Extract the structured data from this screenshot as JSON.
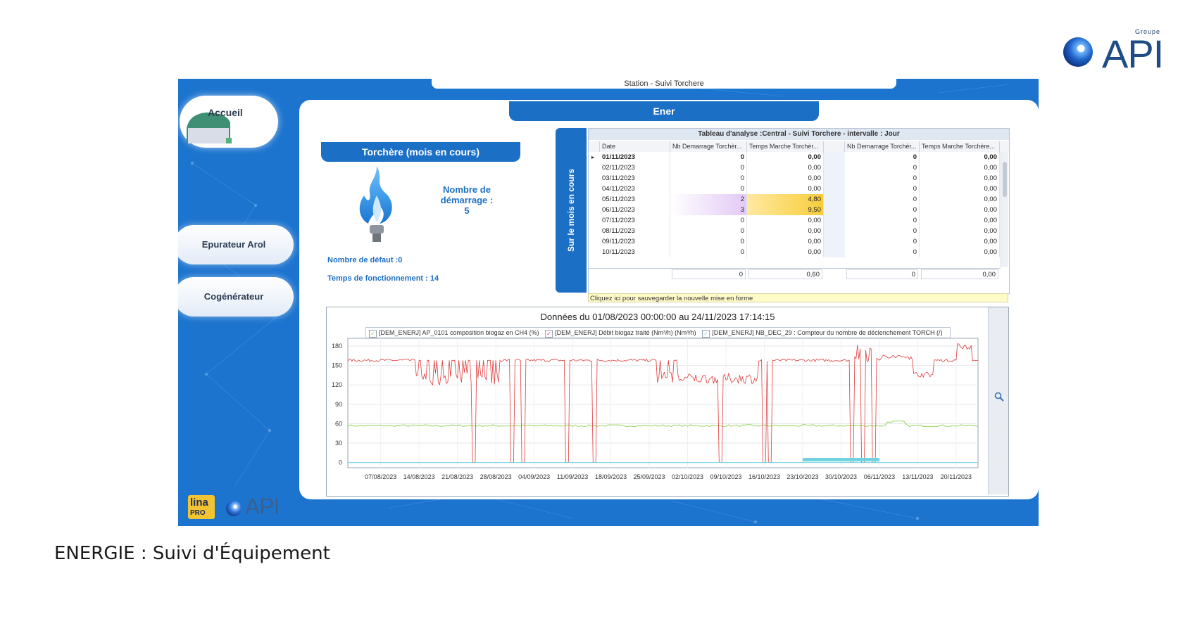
{
  "brand": {
    "groupe_small": "Groupe",
    "groupe_name": "API",
    "lina_line1": "lina",
    "lina_line2": "PRO",
    "app_api": "API"
  },
  "window": {
    "title": "Station - Suivi Torchere"
  },
  "nav": {
    "accueil": "Accueil",
    "epurateur": "Epurateur Arol",
    "cogenerateur": "Cogénérateur"
  },
  "header": {
    "ener": "Ener"
  },
  "torch": {
    "title": "Torchère (mois en cours)",
    "nb_demarrage_label_1": "Nombre de",
    "nb_demarrage_label_2": "démarrage :",
    "nb_demarrage_value": "5",
    "defaut": "Nombre de défaut :0",
    "temps": "Temps de fonctionnement : 14"
  },
  "vertical_tab": "Sur le mois en cours",
  "grid": {
    "title": "Tableau d'analyse :Central - Suivi Torchere - intervalle : Jour",
    "columns": [
      "Date",
      "Nb Demarrage Torchèr...",
      "Temps Marche Torchèr...",
      "Nb Demarrage Torchèr...",
      "Temps Marche Torchère..."
    ],
    "rows": [
      [
        "01/11/2023",
        "0",
        "0,00",
        "0",
        "0,00"
      ],
      [
        "02/11/2023",
        "0",
        "0,00",
        "0",
        "0,00"
      ],
      [
        "03/11/2023",
        "0",
        "0,00",
        "0",
        "0,00"
      ],
      [
        "04/11/2023",
        "0",
        "0,00",
        "0",
        "0,00"
      ],
      [
        "05/11/2023",
        "2",
        "4,80",
        "0",
        "0,00"
      ],
      [
        "06/11/2023",
        "3",
        "9,50",
        "0",
        "0,00"
      ],
      [
        "07/11/2023",
        "0",
        "0,00",
        "0",
        "0,00"
      ],
      [
        "08/11/2023",
        "0",
        "0,00",
        "0",
        "0,00"
      ],
      [
        "09/11/2023",
        "0",
        "0,00",
        "0",
        "0,00"
      ],
      [
        "10/11/2023",
        "0",
        "0,00",
        "0",
        "0,00"
      ]
    ],
    "totals": [
      "0",
      "0,60",
      "0",
      "0,00"
    ],
    "save_hint": "Cliquez ici pour sauvegarder la nouvelle mise en forme",
    "highlight_colors": {
      "purple": "#e3c9f5",
      "yellow": "#f7cd3b"
    }
  },
  "chart_data": {
    "type": "line",
    "title": "Données du 01/08/2023 00:00:00 au 24/11/2023 17:14:15",
    "ylim": [
      -8,
      192
    ],
    "y_ticks": [
      0,
      30,
      60,
      90,
      120,
      150,
      180
    ],
    "x_range": [
      "2023-08-01",
      "2023-11-24"
    ],
    "x_tick_labels": [
      "07/08/2023",
      "14/08/2023",
      "21/08/2023",
      "28/08/2023",
      "04/09/2023",
      "11/09/2023",
      "18/09/2023",
      "25/09/2023",
      "02/10/2023",
      "09/10/2023",
      "16/10/2023",
      "23/10/2023",
      "30/10/2023",
      "06/11/2023",
      "13/11/2023",
      "20/11/2023"
    ],
    "grid": true,
    "legend_position": "top",
    "series": [
      {
        "name": "[DEM_ENERJ] AP_0101 composition biogaz en CH4 (%)",
        "color": "#8fd45a",
        "checked": true,
        "approx_level": 57
      },
      {
        "name": "[DEM_ENERJ] Débit biogaz traité (Nm³/h) (Nm³/h)",
        "color": "#e03b3b",
        "checked": true,
        "approx_level": 158,
        "drops_to_zero_dates": [
          "2023-08-24",
          "2023-08-31",
          "2023-09-02",
          "2023-09-10",
          "2023-09-15",
          "2023-10-08",
          "2023-10-16",
          "2023-10-17",
          "2023-11-01",
          "2023-11-03",
          "2023-11-05"
        ]
      },
      {
        "name": "[DEM_ENERJ] NB_DEC_29 : Compteur du nombre de déclenchement TORCH (/)",
        "color": "#6fd3e0",
        "checked": true,
        "approx_level": 0,
        "band_from": "2023-10-23",
        "band_to": "2023-11-06",
        "band_level": 5
      }
    ]
  },
  "caption": "ENERGIE : Suivi d'Équipement",
  "icons": {
    "zoom": "magnifier-icon",
    "flame": "flame-icon",
    "accueil": "home-icon"
  }
}
